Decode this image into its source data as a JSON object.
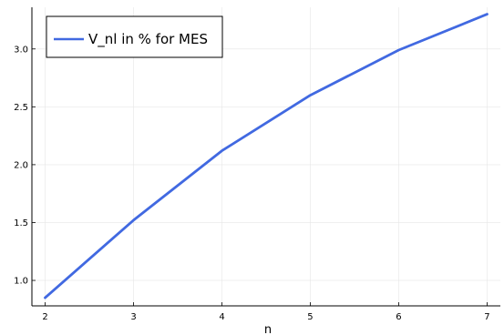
{
  "chart_data": {
    "type": "line",
    "title": "",
    "xlabel": "n",
    "ylabel": "",
    "x": [
      2,
      3,
      4,
      5,
      6,
      7
    ],
    "xlim": [
      1.85,
      7.15
    ],
    "ylim": [
      0.78,
      3.36
    ],
    "xticks": [
      2,
      3,
      4,
      5,
      6,
      7
    ],
    "xtick_labels": [
      "2",
      "3",
      "4",
      "5",
      "6",
      "7"
    ],
    "yticks": [
      1.0,
      1.5,
      2.0,
      2.5,
      3.0
    ],
    "ytick_labels": [
      "1.0",
      "1.5",
      "2.0",
      "2.5",
      "3.0"
    ],
    "grid": true,
    "legend_position": "top-left",
    "series": [
      {
        "name": "V_nl in % for MES",
        "color": "#4169e1",
        "values": [
          0.85,
          1.52,
          2.12,
          2.6,
          2.99,
          3.3
        ]
      }
    ]
  }
}
